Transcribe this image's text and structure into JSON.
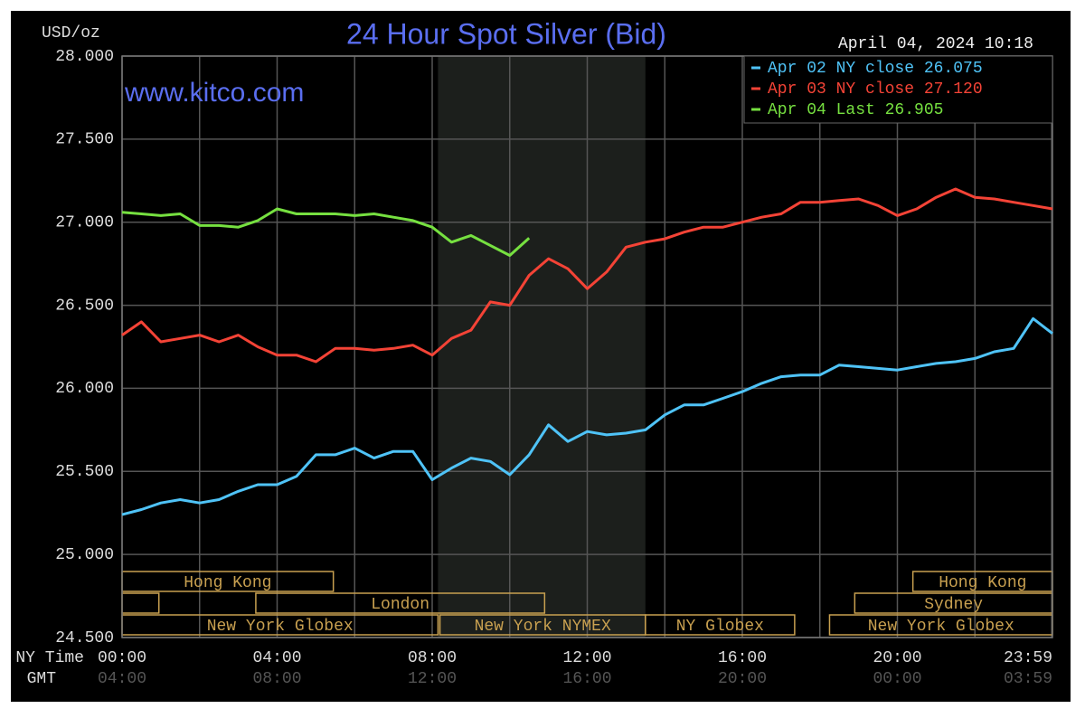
{
  "chart_data": {
    "type": "line",
    "title": "24 Hour Spot Silver (Bid)",
    "watermark": "www.kitco.com",
    "timestamp": "April 04, 2024 10:18",
    "y_label": "USD/oz",
    "x_label": "NY Time",
    "x2_label": "GMT",
    "x": [
      0,
      0.5,
      1,
      1.5,
      2,
      2.5,
      3,
      3.5,
      4,
      4.5,
      5,
      5.5,
      6,
      6.5,
      7,
      7.5,
      8,
      8.5,
      9,
      9.5,
      10,
      10.5,
      11,
      11.5,
      12,
      12.5,
      13,
      13.5,
      14,
      14.5,
      15,
      15.5,
      16,
      16.5,
      17,
      17.5,
      18,
      18.5,
      19,
      19.5,
      20,
      20.5,
      21,
      21.5,
      22,
      22.5,
      23,
      23.5,
      24
    ],
    "series": [
      {
        "name": "Apr 02 NY close 26.075",
        "color": "#4fc3f7",
        "values": [
          25.24,
          25.27,
          25.31,
          25.33,
          25.31,
          25.33,
          25.38,
          25.42,
          25.42,
          25.47,
          25.6,
          25.6,
          25.64,
          25.58,
          25.62,
          25.62,
          25.45,
          25.52,
          25.58,
          25.56,
          25.48,
          25.6,
          25.78,
          25.68,
          25.74,
          25.72,
          25.73,
          25.75,
          25.84,
          25.9,
          25.9,
          25.94,
          25.98,
          26.03,
          26.07,
          26.08,
          26.08,
          26.14,
          26.13,
          26.12,
          26.11,
          26.13,
          26.15,
          26.16,
          26.18,
          26.22,
          26.24,
          26.42,
          26.33
        ]
      },
      {
        "name": "Apr 03 NY close 27.120",
        "color": "#f44336",
        "values": [
          26.32,
          26.4,
          26.28,
          26.3,
          26.32,
          26.28,
          26.32,
          26.25,
          26.2,
          26.2,
          26.16,
          26.24,
          26.24,
          26.23,
          26.24,
          26.26,
          26.2,
          26.3,
          26.35,
          26.52,
          26.5,
          26.68,
          26.78,
          26.72,
          26.6,
          26.7,
          26.85,
          26.88,
          26.9,
          26.94,
          26.97,
          26.97,
          27.0,
          27.03,
          27.05,
          27.12,
          27.12,
          27.13,
          27.14,
          27.1,
          27.04,
          27.08,
          27.15,
          27.2,
          27.15,
          27.14,
          27.12,
          27.1,
          27.08
        ]
      },
      {
        "name": "Apr 04 Last 26.905",
        "color": "#76e040",
        "values": [
          27.06,
          27.05,
          27.04,
          27.05,
          26.98,
          26.98,
          26.97,
          27.01,
          27.08,
          27.05,
          27.05,
          27.05,
          27.04,
          27.05,
          27.03,
          27.01,
          26.97,
          26.88,
          26.92,
          26.86,
          26.8,
          26.905,
          null,
          null,
          null,
          null,
          null,
          null,
          null,
          null,
          null,
          null,
          null,
          null,
          null,
          null,
          null,
          null,
          null,
          null,
          null,
          null,
          null,
          null,
          null,
          null,
          null,
          null,
          null
        ]
      }
    ],
    "xlim": [
      0,
      24
    ],
    "xticks": [
      {
        "value": 0,
        "label": "00:00"
      },
      {
        "value": 4,
        "label": "04:00"
      },
      {
        "value": 8,
        "label": "08:00"
      },
      {
        "value": 12,
        "label": "12:00"
      },
      {
        "value": 16,
        "label": "16:00"
      },
      {
        "value": 20,
        "label": "20:00"
      },
      {
        "value": 23.98,
        "label": "23:59"
      }
    ],
    "x2ticks": [
      {
        "value": 0,
        "label": "04:00"
      },
      {
        "value": 4,
        "label": "08:00"
      },
      {
        "value": 8,
        "label": "12:00"
      },
      {
        "value": 12,
        "label": "16:00"
      },
      {
        "value": 16,
        "label": "20:00"
      },
      {
        "value": 20,
        "label": "00:00"
      },
      {
        "value": 23.98,
        "label": "03:59"
      }
    ],
    "xminor": [
      2,
      6,
      10,
      14,
      18,
      22
    ],
    "ylim": [
      24.5,
      28.0
    ],
    "yticks": [
      {
        "value": 24.5,
        "label": "24.500"
      },
      {
        "value": 25,
        "label": "25.000"
      },
      {
        "value": 25.5,
        "label": "25.500"
      },
      {
        "value": 26,
        "label": "26.000"
      },
      {
        "value": 26.5,
        "label": "26.500"
      },
      {
        "value": 27,
        "label": "27.000"
      },
      {
        "value": 27.5,
        "label": "27.500"
      },
      {
        "value": 28,
        "label": "28.000"
      }
    ],
    "grid": true,
    "legend": "top-right",
    "shade": [
      8.15,
      13.5
    ],
    "sessions": [
      {
        "label": "Hong Kong",
        "start": 0,
        "end": 5.45,
        "row": 0
      },
      {
        "label": "Hong Kong",
        "start": 20.4,
        "end": 24,
        "row": 0
      },
      {
        "label": null,
        "start": 0,
        "end": 0.95,
        "row": 1
      },
      {
        "label": "London",
        "start": 3.45,
        "end": 10.9,
        "row": 1
      },
      {
        "label": "Sydney",
        "start": 18.9,
        "end": 24,
        "row": 1
      },
      {
        "label": "New York Globex",
        "start": 0,
        "end": 8.15,
        "row": 2
      },
      {
        "label": "New York NYMEX",
        "start": 8.2,
        "end": 13.5,
        "row": 2
      },
      {
        "label": "NY Globex",
        "start": 13.5,
        "end": 17.35,
        "row": 2
      },
      {
        "label": "New York Globex",
        "start": 18.25,
        "end": 24,
        "row": 2
      }
    ]
  }
}
